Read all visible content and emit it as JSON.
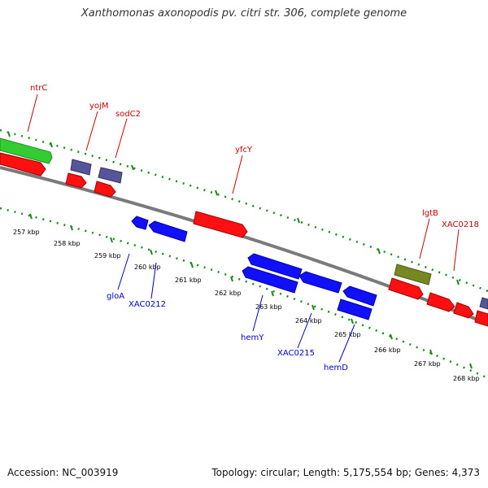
{
  "title": "Xanthomonas axonopodis pv. citri str. 306, complete genome",
  "footer": {
    "accession": "Accession: NC_003919",
    "stats": "Topology: circular; Length: 5,175,554 bp; Genes: 4,373"
  },
  "colors": {
    "forward_gene": "#ff0000",
    "reverse_gene": "#0000ff",
    "purple_gene": "#555599",
    "green_gene": "#33cc33",
    "olive_gene": "#778822",
    "backbone": "#808080",
    "tick": "#1a8a1a",
    "forward_label": "#cc0000",
    "reverse_label": "#0000cc"
  },
  "kbp_labels": [
    "257 kbp",
    "258 kbp",
    "259 kbp",
    "260 kbp",
    "261 kbp",
    "262 kbp",
    "263 kbp",
    "264 kbp",
    "265 kbp",
    "266 kbp",
    "267 kbp",
    "268 kbp"
  ],
  "forward_gene_labels": [
    "ntrC",
    "yojM",
    "sodC2",
    "yfcY",
    "lgtB",
    "XAC0218"
  ],
  "reverse_gene_labels": [
    "gloA",
    "XAC0212",
    "hemY",
    "XAC0215",
    "hemD"
  ]
}
